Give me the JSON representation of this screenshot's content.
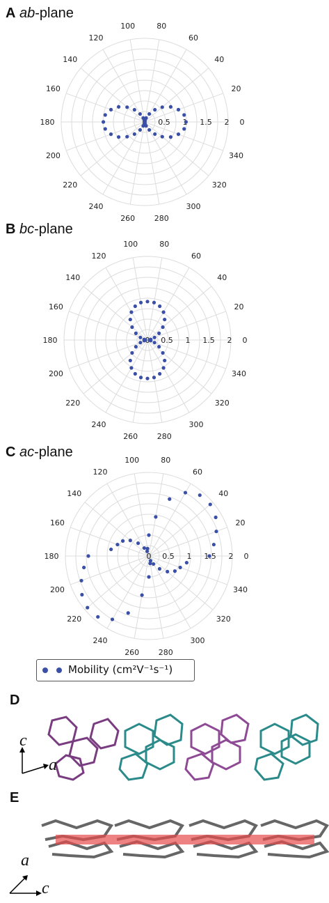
{
  "panels": [
    {
      "letter": "A",
      "plane": "ab",
      "suffix": "-plane"
    },
    {
      "letter": "B",
      "plane": "bc",
      "suffix": "-plane"
    },
    {
      "letter": "C",
      "plane": "ac",
      "suffix": "-plane"
    }
  ],
  "chart_data": [
    {
      "type": "scatter",
      "subtype": "polar",
      "title": "A ab-plane",
      "angle_ticks": [
        "0",
        "20",
        "40",
        "60",
        "80",
        "100",
        "120",
        "140",
        "160",
        "180",
        "200",
        "220",
        "240",
        "260",
        "280",
        "300",
        "320",
        "340"
      ],
      "radial_ticks": [
        "0",
        "0.5",
        "1",
        "1.5",
        "2"
      ],
      "rlim": [
        0,
        2
      ],
      "grid": true,
      "series": [
        {
          "name": "Mobility (cm2V-1s-1)",
          "theta": [
            0,
            10,
            20,
            30,
            40,
            50,
            60,
            70,
            80,
            90,
            100,
            110,
            120,
            130,
            140,
            150,
            160,
            170,
            180,
            190,
            200,
            210,
            220,
            230,
            240,
            250,
            260,
            270,
            280,
            290,
            300,
            310,
            320,
            330,
            340,
            350
          ],
          "r": [
            0.99,
            0.96,
            0.86,
            0.72,
            0.55,
            0.38,
            0.22,
            0.1,
            0.04,
            0.02,
            0.04,
            0.1,
            0.22,
            0.38,
            0.55,
            0.72,
            0.86,
            0.96,
            0.99,
            0.96,
            0.86,
            0.72,
            0.55,
            0.38,
            0.22,
            0.1,
            0.04,
            0.02,
            0.04,
            0.1,
            0.22,
            0.38,
            0.55,
            0.72,
            0.86,
            0.96
          ]
        }
      ]
    },
    {
      "type": "scatter",
      "subtype": "polar",
      "title": "B bc-plane",
      "angle_ticks": [
        "0",
        "20",
        "40",
        "60",
        "80",
        "100",
        "120",
        "140",
        "160",
        "180",
        "200",
        "220",
        "240",
        "260",
        "280",
        "300",
        "320",
        "340"
      ],
      "radial_ticks": [
        "0",
        "0.5",
        "1",
        "1.5",
        "2"
      ],
      "rlim": [
        0,
        2
      ],
      "grid": true,
      "series": [
        {
          "name": "Mobility (cm2V-1s-1)",
          "theta": [
            0,
            10,
            20,
            30,
            40,
            50,
            60,
            70,
            80,
            90,
            100,
            110,
            120,
            130,
            140,
            150,
            160,
            170,
            180,
            190,
            200,
            210,
            220,
            230,
            240,
            250,
            260,
            270,
            280,
            290,
            300,
            310,
            320,
            330,
            340,
            350
          ],
          "r": [
            0.05,
            0.08,
            0.18,
            0.32,
            0.48,
            0.64,
            0.77,
            0.86,
            0.91,
            0.92,
            0.91,
            0.86,
            0.77,
            0.64,
            0.48,
            0.32,
            0.18,
            0.08,
            0.05,
            0.08,
            0.18,
            0.32,
            0.48,
            0.64,
            0.77,
            0.86,
            0.91,
            0.92,
            0.91,
            0.86,
            0.77,
            0.64,
            0.48,
            0.32,
            0.18,
            0.08
          ]
        }
      ]
    },
    {
      "type": "scatter",
      "subtype": "polar",
      "title": "C ac-plane",
      "angle_ticks": [
        "0",
        "20",
        "40",
        "60",
        "80",
        "100",
        "120",
        "140",
        "160",
        "180",
        "200",
        "220",
        "240",
        "260",
        "280",
        "300",
        "320",
        "340"
      ],
      "radial_ticks": [
        "0",
        "0.5",
        "1",
        "1.5",
        "2"
      ],
      "rlim": [
        0,
        2
      ],
      "grid": true,
      "series": [
        {
          "name": "Mobility (cm2V-1s-1)",
          "theta": [
            0,
            10,
            20,
            30,
            40,
            50,
            60,
            70,
            80,
            90,
            100,
            110,
            120,
            130,
            140,
            150,
            160,
            170,
            180,
            190,
            200,
            210,
            220,
            230,
            240,
            250,
            260,
            270,
            280,
            290,
            300,
            310,
            320,
            330,
            340,
            350
          ],
          "r": [
            1.45,
            1.58,
            1.72,
            1.85,
            1.92,
            1.9,
            1.75,
            1.45,
            0.95,
            0.5,
            0.18,
            0.12,
            0.22,
            0.4,
            0.58,
            0.72,
            0.8,
            0.92,
            1.45,
            1.58,
            1.72,
            1.85,
            1.92,
            1.9,
            1.75,
            1.45,
            0.95,
            0.5,
            0.18,
            0.12,
            0.22,
            0.4,
            0.58,
            0.72,
            0.8,
            0.92
          ]
        }
      ]
    }
  ],
  "legend": {
    "label_text": "Mobility (cm²V⁻¹s⁻¹)",
    "marker_color": "#3a4fa6"
  },
  "structures": [
    {
      "letter": "D",
      "axis_vertical": "c",
      "axis_horizontal": "a",
      "colors": [
        "#8e4a94",
        "#2b8a8a"
      ]
    },
    {
      "letter": "E",
      "axis_vertical": "a",
      "axis_horizontal": "c",
      "colors": [
        "#666666",
        "#e74c4c"
      ]
    }
  ]
}
